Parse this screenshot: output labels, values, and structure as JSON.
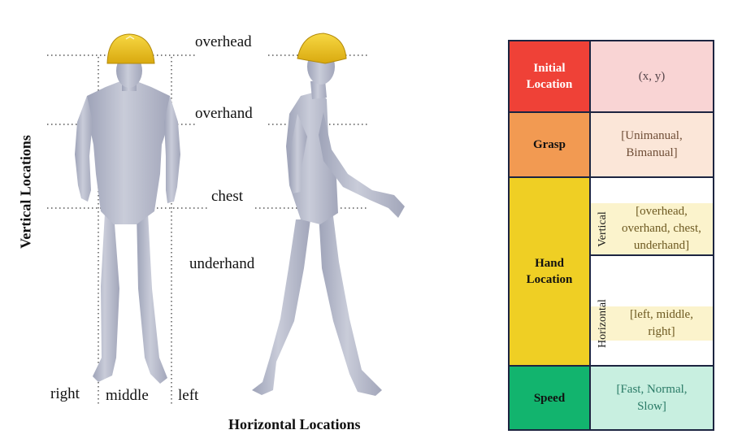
{
  "figure": {
    "vertical_labels": [
      "overhead",
      "overhand",
      "chest",
      "underhand"
    ],
    "horizontal_labels": [
      "right",
      "middle",
      "left"
    ],
    "vertical_axis_title": "Vertical Locations",
    "horizontal_axis_title": "Horizontal Locations",
    "colors": {
      "helmet": "#f2c51a",
      "body": "#b7bbcc",
      "guide_line": "#333333"
    }
  },
  "table": {
    "rows": [
      {
        "key": "Initial Location",
        "value": "(x, y)",
        "key_color": "#ef4137",
        "value_color": "#f9d4d4"
      },
      {
        "key": "Grasp",
        "value": "[Unimanual, Bimanual]",
        "key_color": "#f29a52",
        "value_color": "#fbe6d8"
      },
      {
        "key": "Hand Location",
        "key_color": "#efcf24",
        "value_color": "#fbf3cc",
        "sub_rows": [
          {
            "title": "Vertical",
            "value": "[overhead, overhand, chest, underhand]"
          },
          {
            "title": "Horizontal",
            "value": "[left, middle, right]"
          }
        ]
      },
      {
        "key": "Speed",
        "value": "[Fast, Normal, Slow]",
        "key_color": "#12b46e",
        "value_color": "#c8efe0"
      }
    ]
  }
}
